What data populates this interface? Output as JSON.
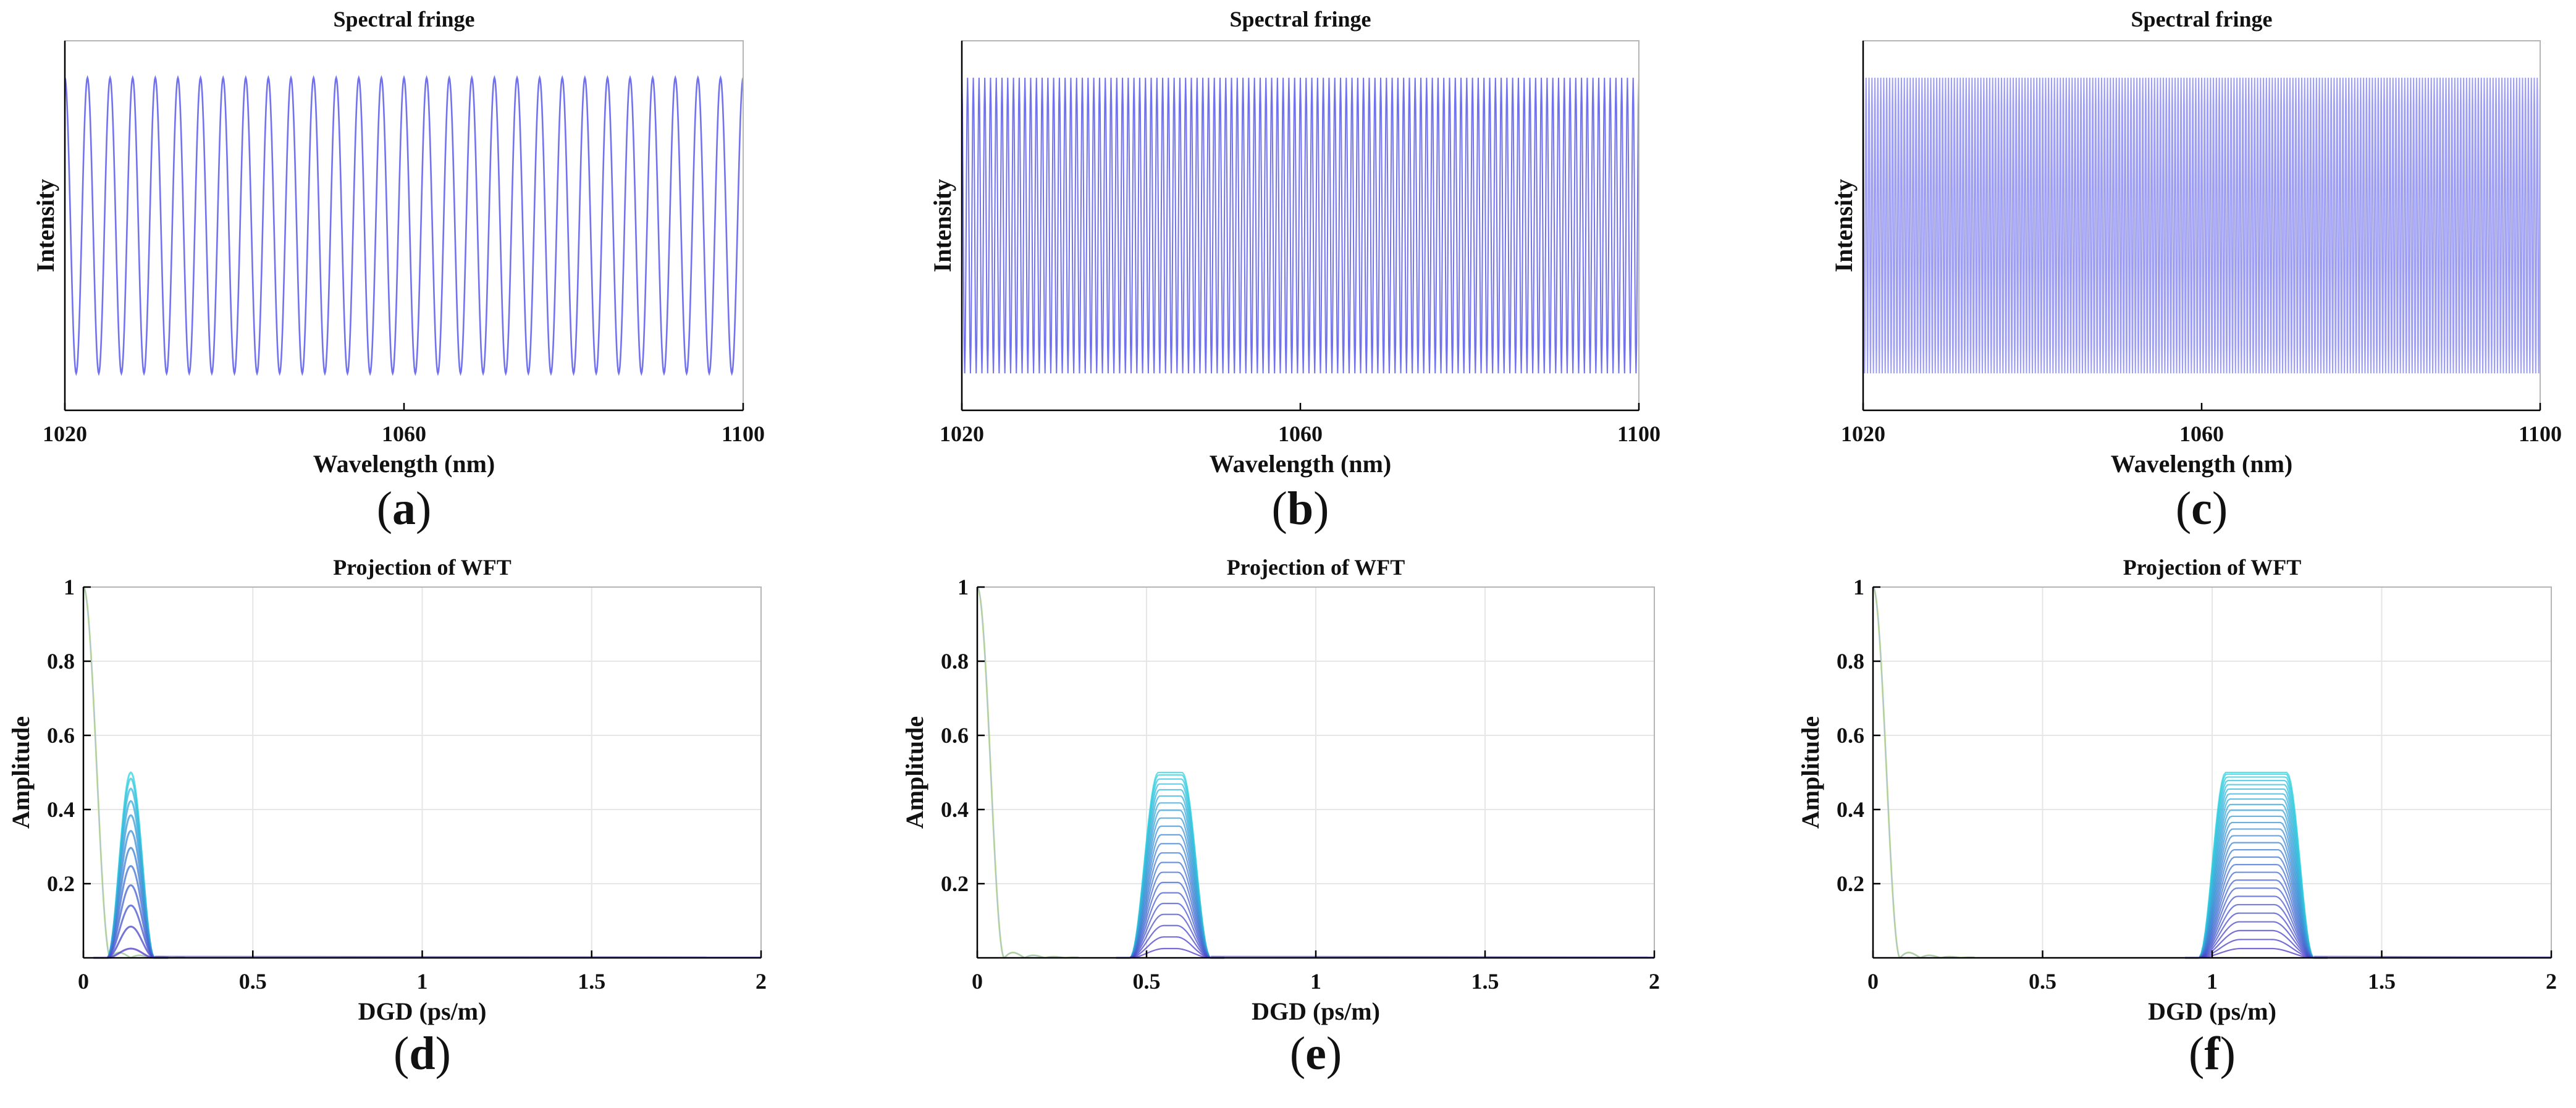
{
  "colors": {
    "fringe": "#4f4fe8",
    "wft_peak": "#2fd4e0",
    "wft_base": "#4b37c8",
    "wft_start": "#cce66a",
    "axis": "#000000",
    "grid": "#e6e6e6"
  },
  "chart_data": [
    {
      "id": "a",
      "type": "line",
      "title": "Spectral fringe",
      "xlabel": "Wavelength (nm)",
      "ylabel": "Intensity",
      "xlim": [
        1020,
        1100
      ],
      "ylim": [
        -1.25,
        1.25
      ],
      "xticks": [
        1020,
        1060,
        1100
      ],
      "grid": false,
      "series": [
        {
          "name": "fringe",
          "type": "sinusoid",
          "amplitude": 1,
          "cycles": 30,
          "x_start": 1020,
          "x_end": 1100
        }
      ],
      "panel_label": "a"
    },
    {
      "id": "b",
      "type": "line",
      "title": "Spectral fringe",
      "xlabel": "Wavelength (nm)",
      "ylabel": "Intensity",
      "xlim": [
        1020,
        1100
      ],
      "ylim": [
        -1.25,
        1.25
      ],
      "xticks": [
        1020,
        1060,
        1100
      ],
      "grid": false,
      "series": [
        {
          "name": "fringe",
          "type": "sinusoid",
          "amplitude": 1,
          "cycles": 118,
          "x_start": 1020,
          "x_end": 1100
        }
      ],
      "panel_label": "b"
    },
    {
      "id": "c",
      "type": "line",
      "title": "Spectral fringe",
      "xlabel": "Wavelength (nm)",
      "ylabel": "Intensity",
      "xlim": [
        1020,
        1100
      ],
      "ylim": [
        -1.25,
        1.25
      ],
      "xticks": [
        1020,
        1060,
        1100
      ],
      "grid": false,
      "series": [
        {
          "name": "fringe",
          "type": "sinusoid",
          "amplitude": 1,
          "cycles": 230,
          "x_start": 1020,
          "x_end": 1100
        }
      ],
      "panel_label": "c"
    },
    {
      "id": "d",
      "type": "line",
      "title": "Projection of WFT",
      "xlabel": "DGD (ps/m)",
      "ylabel": "Amplitude",
      "xlim": [
        0,
        2
      ],
      "ylim": [
        0,
        1
      ],
      "xticks": [
        0,
        0.5,
        1,
        1.5,
        2
      ],
      "yticks": [
        0.2,
        0.4,
        0.6,
        0.8,
        1
      ],
      "grid": true,
      "dc_decay": {
        "peak": 1,
        "zero_at": 0.08
      },
      "peak": {
        "center": 0.14,
        "amplitude": 0.5,
        "base_width": 0.14,
        "flat_width": 0.0,
        "curve_count": 12
      },
      "panel_label": "d"
    },
    {
      "id": "e",
      "type": "line",
      "title": "Projection of WFT",
      "xlabel": "DGD (ps/m)",
      "ylabel": "Amplitude",
      "xlim": [
        0,
        2
      ],
      "ylim": [
        0,
        1
      ],
      "xticks": [
        0,
        0.5,
        1,
        1.5,
        2
      ],
      "yticks": [
        0.2,
        0.4,
        0.6,
        0.8,
        1
      ],
      "grid": true,
      "dc_decay": {
        "peak": 1,
        "zero_at": 0.08
      },
      "peak": {
        "center": 0.57,
        "amplitude": 0.5,
        "base_width": 0.24,
        "flat_width": 0.07,
        "curve_count": 22
      },
      "panel_label": "e"
    },
    {
      "id": "f",
      "type": "line",
      "title": "Projection of WFT",
      "xlabel": "DGD (ps/m)",
      "ylabel": "Amplitude",
      "xlim": [
        0,
        2
      ],
      "ylim": [
        0,
        1
      ],
      "xticks": [
        0,
        0.5,
        1,
        1.5,
        2
      ],
      "yticks": [
        0.2,
        0.4,
        0.6,
        0.8,
        1
      ],
      "grid": true,
      "dc_decay": {
        "peak": 1,
        "zero_at": 0.08
      },
      "peak": {
        "center": 1.13,
        "amplitude": 0.5,
        "base_width": 0.34,
        "flat_width": 0.18,
        "curve_count": 28
      },
      "panel_label": "f"
    }
  ]
}
